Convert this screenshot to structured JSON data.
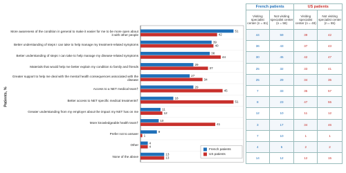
{
  "chart_data": {
    "type": "bar",
    "orientation": "horizontal",
    "ylabel": "Patients, %",
    "categories": [
      "More awareness of the condition in general to make it easier for me to be more open about it with other people",
      "Better understanding of steps I can take to help manage my treatment-related symptoms",
      "Better understanding of steps I can take to help manage my disease-related symptoms",
      "Materials that would help me better explain my condition to family and friends",
      "Greater support to help me deal with the mental health consequences associated with the disease",
      "Access to a NET medical team†",
      "Better access to NET specific medical treatments†",
      "Greater understanding from my employer about the impact my NET has on me",
      "More knowledgeable health team†",
      "Prefer not to answer",
      "Other",
      "None of the above"
    ],
    "series": [
      {
        "name": "French patients",
        "color": "#1f6fb8",
        "values": [
          51,
          39,
          38,
          29,
          27,
          29,
          18,
          11,
          10,
          9,
          4,
          13
        ]
      },
      {
        "name": "US patients",
        "color": "#c8302c",
        "values": [
          42,
          40,
          44,
          37,
          34,
          45,
          51,
          12,
          41,
          1,
          4,
          13
        ]
      }
    ],
    "xlim": [
      0,
      55
    ],
    "legend": "lower right"
  },
  "table": {
    "group_headers": [
      "French patients",
      "US patients"
    ],
    "column_headers": [
      "Visiting specialist center (n = 81)",
      "Not visiting specialist center (n = 58)",
      "Visiting specialist center (n = 49)",
      "Not visiting specialist center (n = 55)"
    ],
    "rows": [
      [
        44,
        59,
        39,
        42
      ],
      [
        36,
        43,
        37,
        43
      ],
      [
        30,
        45,
        42,
        47
      ],
      [
        25,
        32,
        33,
        41
      ],
      [
        25,
        29,
        34,
        35
      ],
      [
        7,
        33,
        35,
        57
      ],
      [
        8,
        23,
        47,
        55
      ],
      [
        12,
        10,
        11,
        12
      ],
      [
        3,
        17,
        34,
        46
      ],
      [
        7,
        10,
        1,
        1
      ],
      [
        4,
        5,
        2,
        2
      ],
      [
        14,
        12,
        12,
        15
      ]
    ]
  }
}
